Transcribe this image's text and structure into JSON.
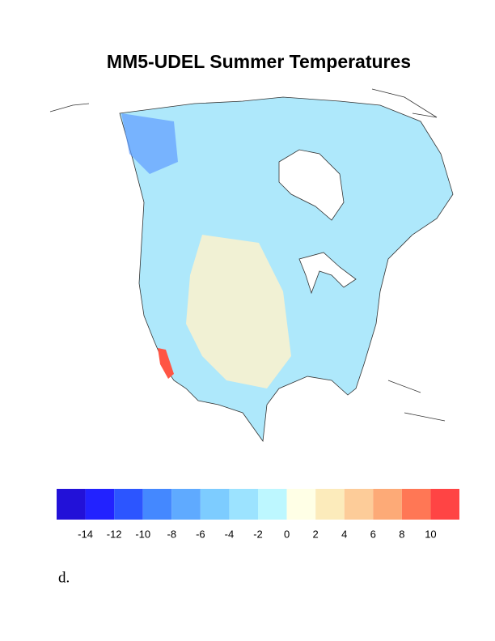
{
  "title": "MM5-UDEL Summer Temperatures",
  "colorbar": {
    "lim": [
      -16,
      12
    ],
    "ticks": [
      -14,
      -12,
      -10,
      -8,
      -6,
      -4,
      -2,
      0,
      2,
      4,
      6,
      8,
      10
    ],
    "colors": [
      "#2211d8",
      "#2222ff",
      "#2c55ff",
      "#4488ff",
      "#5faaff",
      "#7dccff",
      "#9ce3ff",
      "#bdf7ff",
      "#ffffe6",
      "#fcebbb",
      "#fdcc99",
      "#fdaa77",
      "#ff7755",
      "#ff4444"
    ]
  },
  "caption": "d."
}
